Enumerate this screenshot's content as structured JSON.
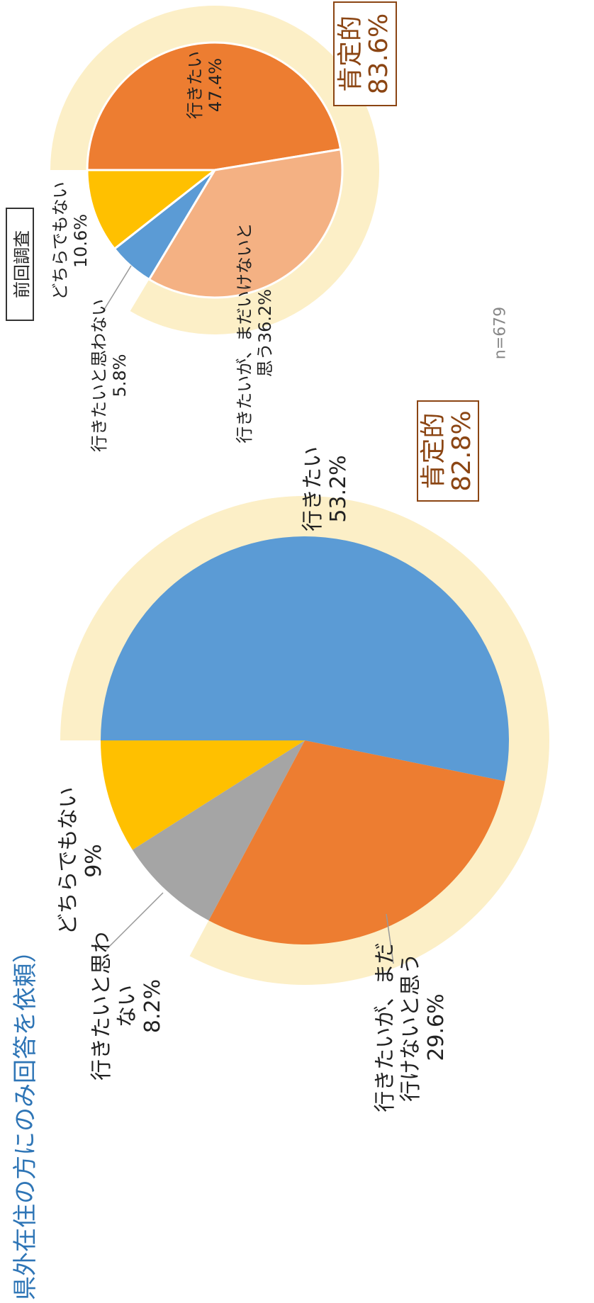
{
  "chart_data": [
    {
      "type": "pie",
      "title": "県外在住の方にのみ回答を依頼）",
      "categories": [
        "行きたい",
        "行きたいが、まだ\n行けないと思う",
        "行きたいと思わ\nない",
        "どちらでもない"
      ],
      "values": [
        53.2,
        29.6,
        8.2,
        9
      ],
      "value_labels": [
        "53.2%",
        "29.6%",
        "8.2%",
        "9%"
      ],
      "colors": [
        "#5b9bd5",
        "#ed7d31",
        "#a5a5a5",
        "#ffc000"
      ],
      "positive": {
        "label": "肯定的",
        "value": 82.8,
        "value_label": "82.8%"
      }
    },
    {
      "type": "pie",
      "subtitle": "前回調査",
      "categories": [
        "行きたい",
        "行きたいが、まだいけないと\n思う",
        "行きたいと思わない",
        "どちらでもない"
      ],
      "values": [
        47.4,
        36.2,
        5.8,
        10.6
      ],
      "value_labels": [
        "47.4%",
        "36.2%",
        "5.8%",
        "10.6%"
      ],
      "colors": [
        "#ed7d31",
        "#f4b183",
        "#5b9bd5",
        "#ffc000"
      ],
      "positive": {
        "label": "肯定的",
        "value": 83.6,
        "value_label": "83.6%"
      },
      "note": "n=679"
    }
  ]
}
